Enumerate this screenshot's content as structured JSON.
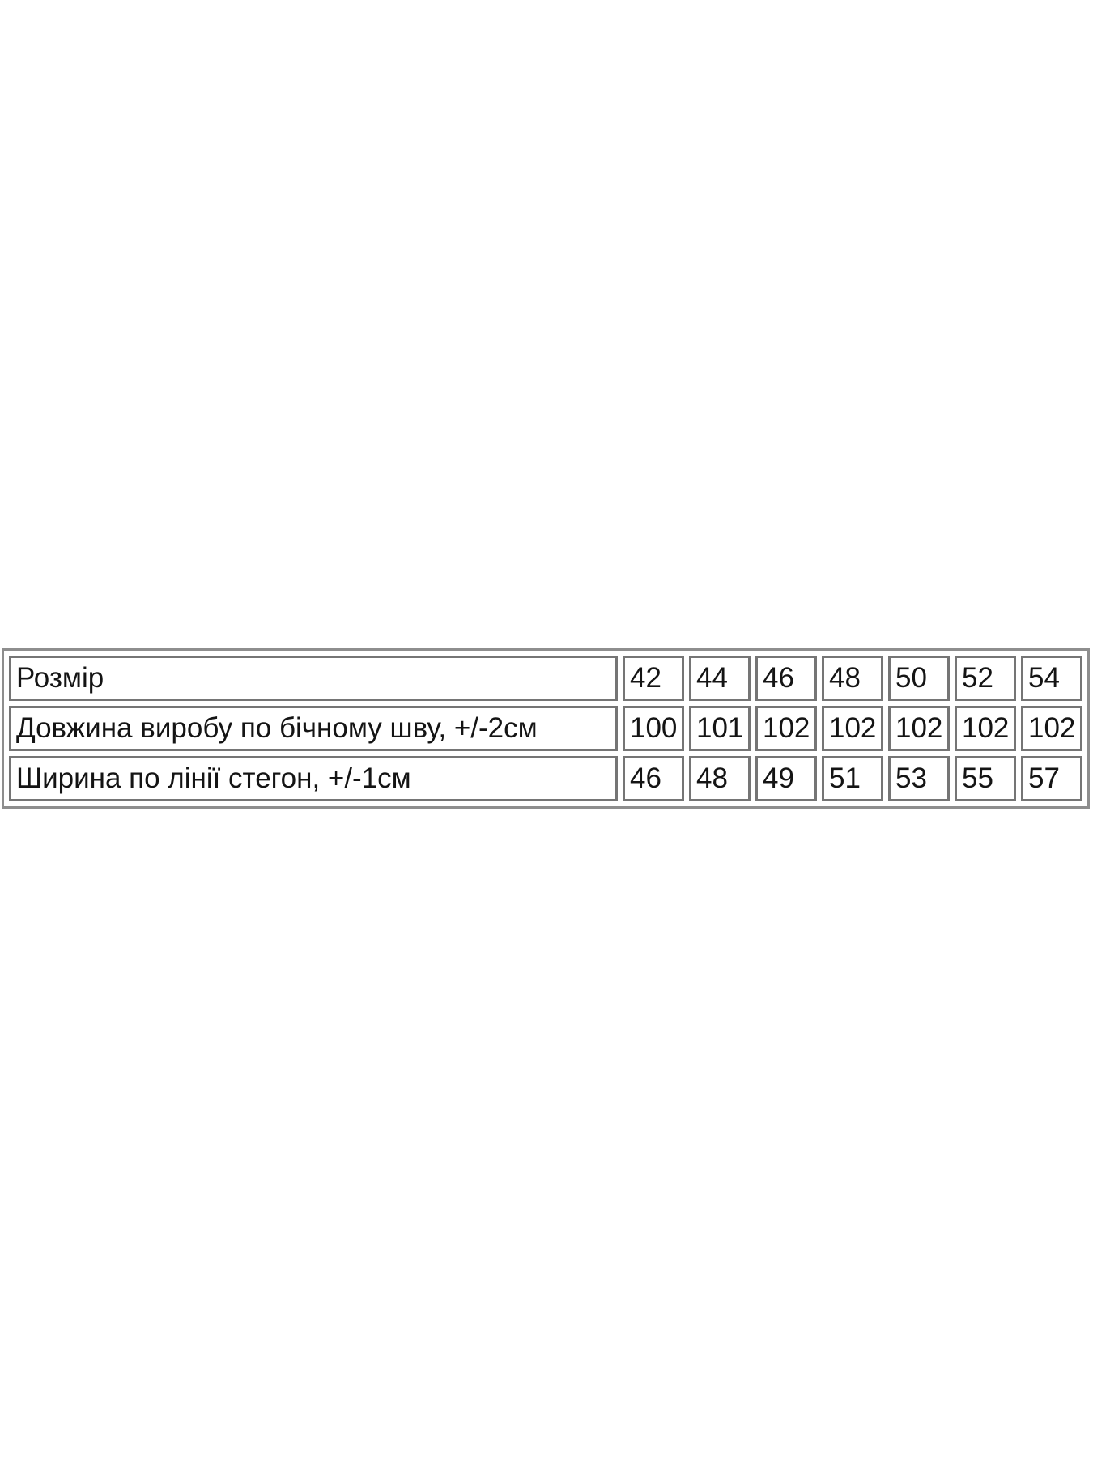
{
  "page": {
    "background": "#ffffff"
  },
  "colors": {
    "table_outer_border": "#8e8e8e",
    "cell_border": "#757575",
    "text": "#141414"
  },
  "chart_data": {
    "type": "table",
    "title": "",
    "rows": [
      [
        "Розмір",
        "42",
        "44",
        "46",
        "48",
        "50",
        "52",
        "54"
      ],
      [
        "Довжина виробу по бічному шву, +/-2см",
        "100",
        "101",
        "102",
        "102",
        "102",
        "102",
        "102"
      ],
      [
        "Ширина по лінії стегон, +/-1см",
        "46",
        "48",
        "49",
        "51",
        "53",
        "55",
        "57"
      ]
    ]
  }
}
